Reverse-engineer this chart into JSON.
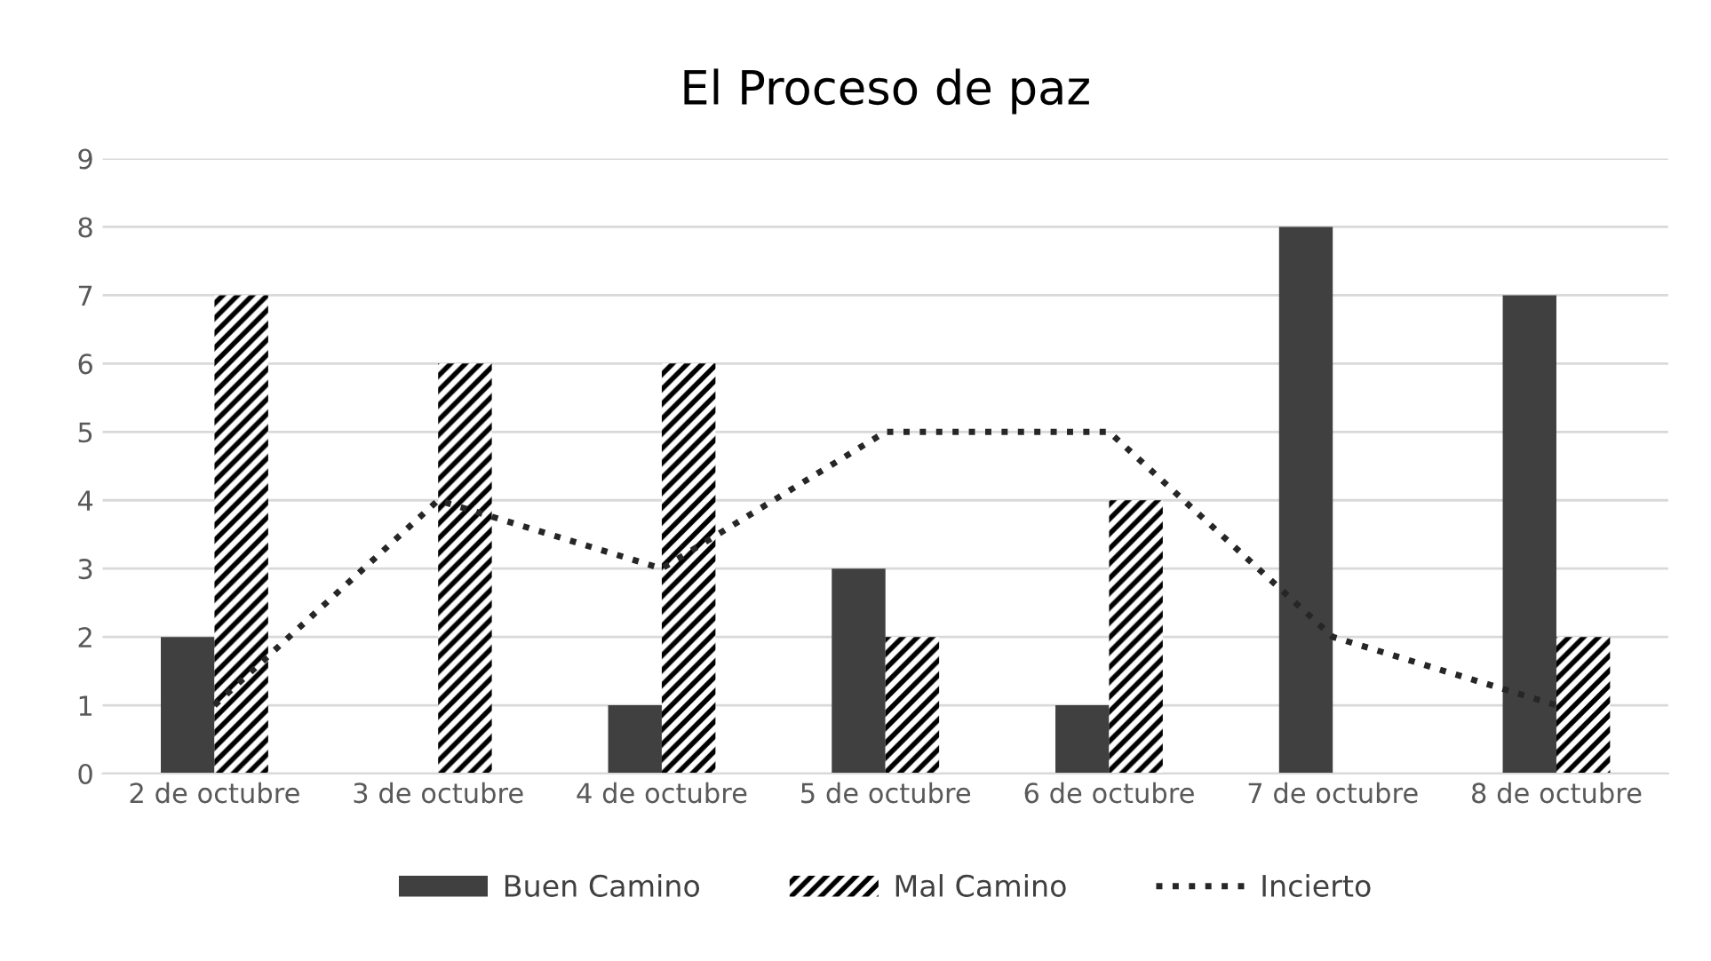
{
  "chart_data": {
    "type": "bar",
    "title": "El Proceso de paz",
    "categories": [
      "2 de octubre",
      "3 de octubre",
      "4 de octubre",
      "5 de octubre",
      "6 de octubre",
      "7 de octubre",
      "8 de octubre"
    ],
    "series": [
      {
        "name": "Buen Camino",
        "color": "#404040",
        "values": [
          2,
          0,
          1,
          3,
          1,
          8,
          7
        ]
      },
      {
        "name": "Mal Camino",
        "color": "#000000",
        "values": [
          7,
          6,
          6,
          2,
          4,
          0,
          2
        ]
      },
      {
        "name": "Incierto",
        "type": "line",
        "color": "#262626",
        "line_style": "dotted",
        "values": [
          1,
          4,
          3,
          5,
          5,
          2,
          1
        ]
      }
    ],
    "ylim": [
      0,
      9
    ],
    "yticks": [
      0,
      1,
      2,
      3,
      4,
      5,
      6,
      7,
      8,
      9
    ],
    "grid": "y",
    "legend": "bottom",
    "marker": "none"
  }
}
